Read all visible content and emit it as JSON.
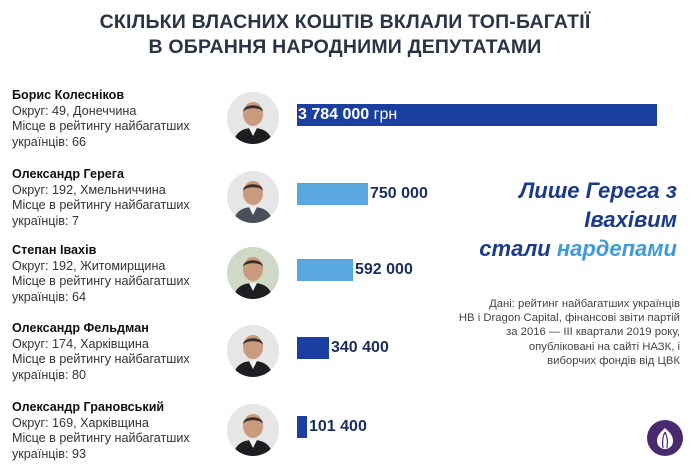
{
  "title_lines": [
    "СКІЛЬКИ ВЛАСНИХ КОШТІВ ВКЛАЛИ ТОП-БАГАТІЇ",
    "В ОБРАННЯ НАРОДНИМИ ДЕПУТАТАМИ"
  ],
  "people": [
    {
      "name": "Борис Колесніков",
      "district": "Округ: 49, Донеччина",
      "rank_line1": "Місце в рейтингу найбагатших",
      "rank_line2": "українців: 66",
      "amount_label": "3 784 000",
      "unit": "грн"
    },
    {
      "name": "Олександр Герега",
      "district": "Округ: 192, Хмельниччина",
      "rank_line1": "Місце в рейтингу найбагатших",
      "rank_line2": "українців: 7",
      "amount_label": "750 000",
      "unit": ""
    },
    {
      "name": "Степан Івахів",
      "district": "Округ: 192, Житомирщина",
      "rank_line1": "Місце в рейтингу найбагатших",
      "rank_line2": "українців: 64",
      "amount_label": "592 000",
      "unit": ""
    },
    {
      "name": "Олександр Фельдман",
      "district": "Округ: 174, Харківщина",
      "rank_line1": "Місце в рейтингу найбагатших",
      "rank_line2": "українців: 80",
      "amount_label": "340 400",
      "unit": ""
    },
    {
      "name": "Олександр Грановський",
      "district": "Округ: 169, Харківщина",
      "rank_line1": "Місце в рейтингу найбагатших",
      "rank_line2": "українців: 93",
      "amount_label": "101 400",
      "unit": ""
    }
  ],
  "highlight": {
    "line1": "Лише Герега з Івахівим",
    "line2_plain": "стали ",
    "line2_accent": "нардепами"
  },
  "source_lines": [
    "Дані: рейтинг найбагатших українців",
    "НВ і Dragon Capital, фінансові звіти партій",
    "за 2016 — ІІІ квартали 2019 року,",
    "опубліковані на сайті НАЗК, і",
    "виборчих фондів від ЦВК"
  ],
  "colors": {
    "dark_blue": "#1b3fa0",
    "light_blue": "#5aa7e0",
    "title": "#2a3445",
    "logo": "#4a2a6e"
  },
  "chart_data": {
    "type": "bar",
    "orientation": "horizontal",
    "categories": [
      "Борис Колесніков",
      "Олександр Герега",
      "Степан Івахів",
      "Олександр Фельдман",
      "Олександр Грановський"
    ],
    "values": [
      3784000,
      750000,
      592000,
      340400,
      101400
    ],
    "bar_colors": [
      "#1b3fa0",
      "#5aa7e0",
      "#5aa7e0",
      "#1b3fa0",
      "#1b3fa0"
    ],
    "unit": "грн",
    "xlim": [
      0,
      3784000
    ],
    "grid": false,
    "legend": "none"
  }
}
